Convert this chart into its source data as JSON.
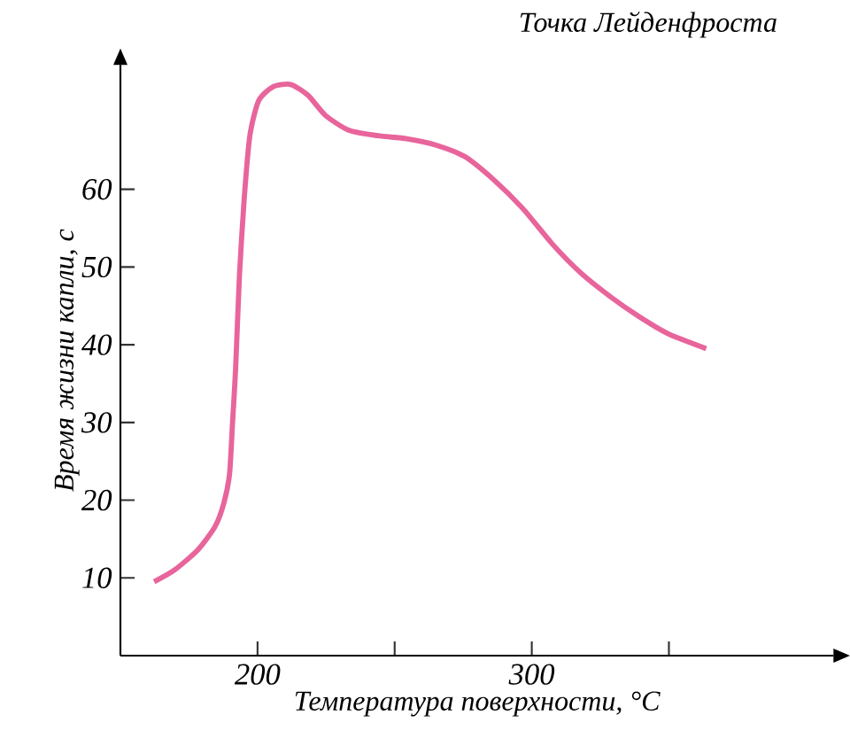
{
  "chart_data": {
    "type": "line",
    "title": "Точка Лейденфроста",
    "xlabel": "Температура поверхности, °C",
    "ylabel": "Время жизни капли, с",
    "xlim": [
      150,
      410
    ],
    "ylim": [
      0,
      76
    ],
    "xticks": [
      200,
      {
        "value": 250,
        "label": null
      },
      300,
      {
        "value": 350,
        "label": null
      }
    ],
    "yticks": [
      10,
      20,
      30,
      40,
      50,
      60
    ],
    "grid": false,
    "marker": "none",
    "line_style": "solid",
    "series": [
      {
        "color": "#e8659c",
        "x": [
          162.3,
          169.7,
          178.2,
          184.5,
          187.7,
          189.8,
          190.9,
          192.0,
          193.4,
          195.1,
          197.2,
          200.4,
          205.7,
          212.1,
          218.4,
          224.8,
          233.3,
          243.9,
          254.4,
          265.0,
          275.6,
          286.2,
          296.8,
          307.4,
          318.0,
          328.6,
          339.2,
          349.8,
          363.6
        ],
        "values": [
          9.5,
          11.0,
          13.6,
          16.6,
          19.6,
          23.4,
          30.1,
          36.9,
          48.9,
          58.6,
          66.9,
          71.4,
          73.2,
          73.5,
          72.1,
          69.5,
          67.6,
          66.9,
          66.5,
          65.7,
          64.2,
          61.2,
          57.5,
          53.0,
          49.2,
          46.2,
          43.6,
          41.4,
          39.5
        ]
      }
    ]
  }
}
